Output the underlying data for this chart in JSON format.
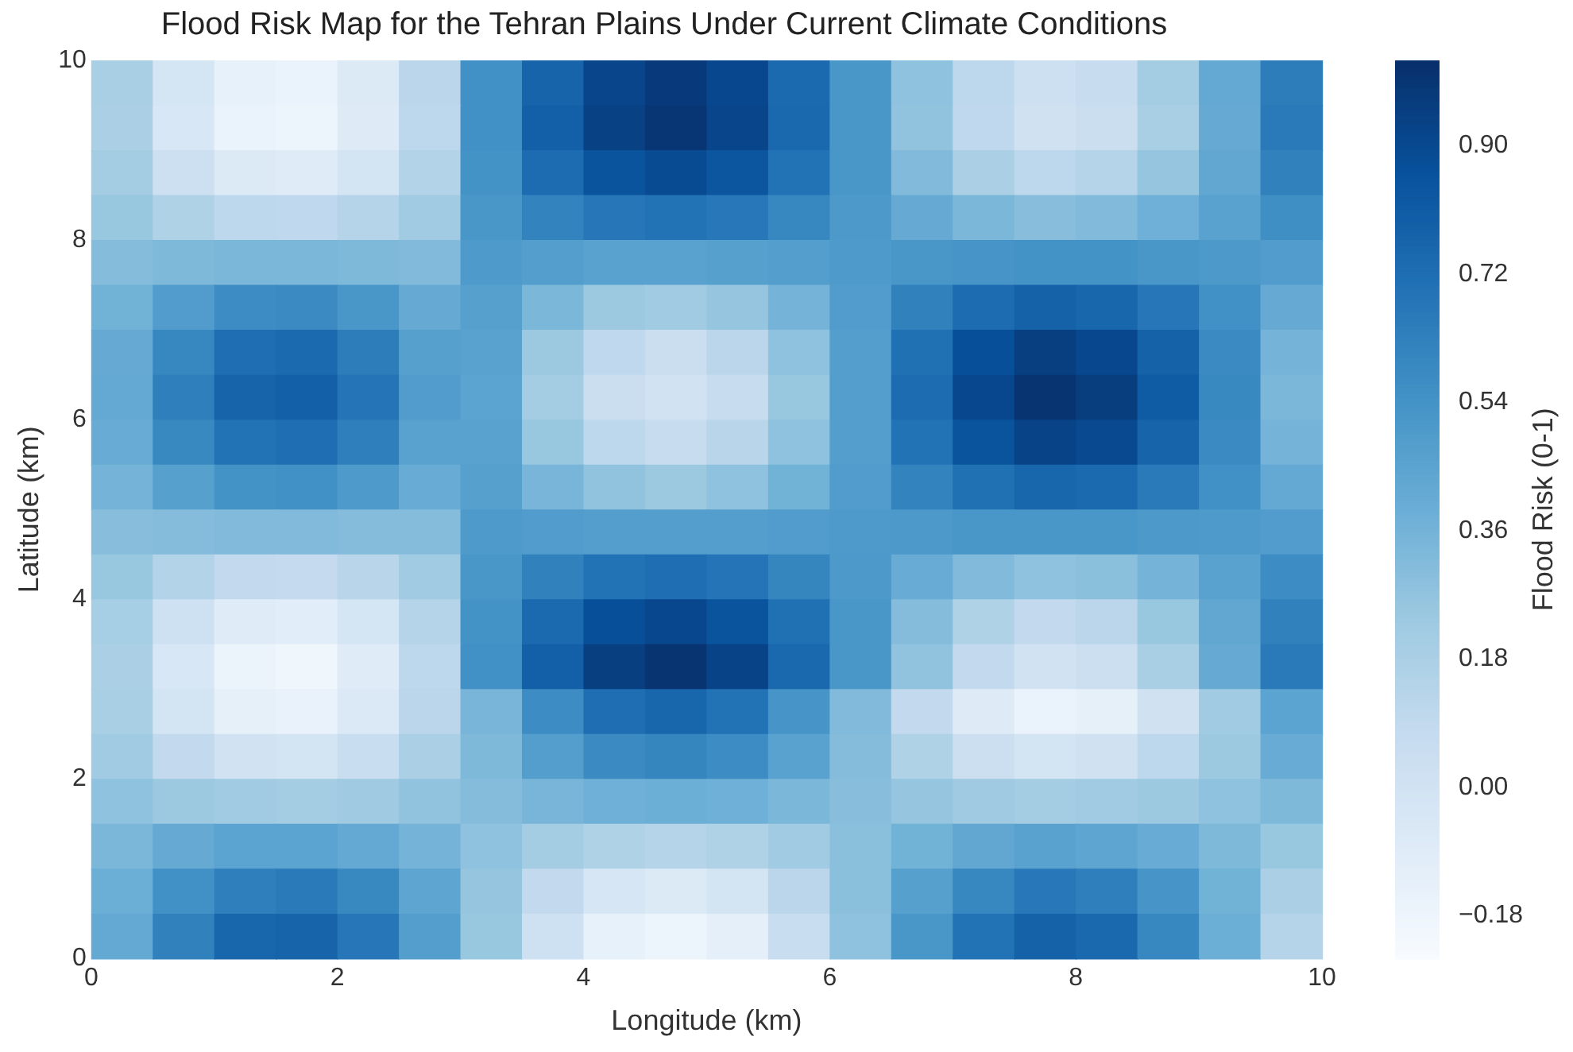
{
  "chart_data": {
    "type": "heatmap",
    "title": "Flood Risk Map for the Tehran Plains Under Current Climate Conditions",
    "xlabel": "Longitude (km)",
    "ylabel": "Latitude (km)",
    "clabel": "Flood Risk (0-1)",
    "x": [
      0.25,
      0.75,
      1.25,
      1.75,
      2.25,
      2.75,
      3.25,
      3.75,
      4.25,
      4.75,
      5.25,
      5.75,
      6.25,
      6.75,
      7.25,
      7.75,
      8.25,
      8.75,
      9.25,
      9.75
    ],
    "y": [
      9.75,
      9.25,
      8.75,
      8.25,
      7.75,
      7.25,
      6.75,
      6.25,
      5.75,
      5.25,
      4.75,
      4.25,
      3.75,
      3.25,
      2.75,
      2.25,
      1.75,
      1.25,
      0.75,
      0.25
    ],
    "xlim": [
      0,
      10
    ],
    "ylim": [
      0,
      10
    ],
    "xticks": [
      0,
      2,
      4,
      6,
      8,
      10
    ],
    "yticks": [
      0,
      2,
      4,
      6,
      8,
      10
    ],
    "clim": [
      -0.24,
      1.02
    ],
    "cticks": [
      {
        "value": -0.18,
        "label": "−0.18"
      },
      {
        "value": 0,
        "label": "0.00"
      },
      0.18,
      0.36,
      0.54,
      0.72,
      {
        "value": 0.9,
        "label": "0.90"
      }
    ],
    "colors": [
      "#f7fbff",
      "#deebf7",
      "#c6dbef",
      "#9ecae1",
      "#6baed6",
      "#4292c6",
      "#2171b5",
      "#08519c",
      "#08306b"
    ],
    "cells": [
      [
        0.19,
        -0.02,
        -0.14,
        -0.16,
        -0.07,
        0.12,
        0.55,
        0.77,
        0.92,
        0.97,
        0.91,
        0.74,
        0.52,
        0.28,
        0.11,
        0.03,
        0.07,
        0.21,
        0.42,
        0.65
      ],
      [
        0.18,
        -0.04,
        -0.16,
        -0.18,
        -0.08,
        0.11,
        0.55,
        0.79,
        0.94,
        0.99,
        0.92,
        0.75,
        0.52,
        0.27,
        0.1,
        0.01,
        0.05,
        0.19,
        0.41,
        0.66
      ],
      [
        0.21,
        0.03,
        -0.07,
        -0.09,
        -0.01,
        0.15,
        0.54,
        0.73,
        0.85,
        0.89,
        0.84,
        0.7,
        0.52,
        0.32,
        0.18,
        0.11,
        0.14,
        0.26,
        0.43,
        0.63
      ],
      [
        0.25,
        0.16,
        0.11,
        0.1,
        0.14,
        0.22,
        0.52,
        0.62,
        0.68,
        0.7,
        0.67,
        0.6,
        0.51,
        0.41,
        0.34,
        0.3,
        0.32,
        0.38,
        0.46,
        0.56
      ],
      [
        0.31,
        0.33,
        0.34,
        0.34,
        0.33,
        0.32,
        0.5,
        0.48,
        0.46,
        0.46,
        0.47,
        0.48,
        0.5,
        0.52,
        0.53,
        0.54,
        0.54,
        0.52,
        0.51,
        0.49
      ],
      [
        0.37,
        0.49,
        0.57,
        0.58,
        0.52,
        0.41,
        0.47,
        0.34,
        0.24,
        0.22,
        0.26,
        0.36,
        0.49,
        0.63,
        0.73,
        0.78,
        0.76,
        0.68,
        0.55,
        0.41
      ],
      [
        0.41,
        0.6,
        0.72,
        0.74,
        0.65,
        0.47,
        0.46,
        0.24,
        0.1,
        0.05,
        0.12,
        0.28,
        0.48,
        0.71,
        0.87,
        0.95,
        0.91,
        0.78,
        0.58,
        0.36
      ],
      [
        0.42,
        0.64,
        0.77,
        0.79,
        0.69,
        0.49,
        0.45,
        0.21,
        0.05,
        0.0,
        0.07,
        0.25,
        0.48,
        0.73,
        0.91,
        1.0,
        0.96,
        0.81,
        0.59,
        0.34
      ],
      [
        0.4,
        0.59,
        0.7,
        0.72,
        0.64,
        0.46,
        0.46,
        0.25,
        0.11,
        0.07,
        0.13,
        0.28,
        0.48,
        0.7,
        0.85,
        0.93,
        0.9,
        0.77,
        0.58,
        0.36
      ],
      [
        0.36,
        0.47,
        0.54,
        0.55,
        0.5,
        0.4,
        0.47,
        0.35,
        0.27,
        0.24,
        0.28,
        0.37,
        0.49,
        0.62,
        0.71,
        0.76,
        0.74,
        0.66,
        0.55,
        0.42
      ],
      [
        0.3,
        0.31,
        0.32,
        0.32,
        0.31,
        0.31,
        0.5,
        0.49,
        0.48,
        0.48,
        0.48,
        0.49,
        0.5,
        0.51,
        0.52,
        0.52,
        0.52,
        0.51,
        0.5,
        0.49
      ],
      [
        0.25,
        0.15,
        0.09,
        0.08,
        0.13,
        0.22,
        0.52,
        0.63,
        0.7,
        0.72,
        0.69,
        0.61,
        0.51,
        0.4,
        0.32,
        0.28,
        0.29,
        0.36,
        0.46,
        0.57
      ],
      [
        0.2,
        0.02,
        -0.09,
        -0.1,
        -0.02,
        0.14,
        0.54,
        0.74,
        0.87,
        0.91,
        0.85,
        0.71,
        0.52,
        0.31,
        0.16,
        0.09,
        0.12,
        0.25,
        0.43,
        0.63
      ],
      [
        0.18,
        -0.04,
        -0.17,
        -0.19,
        -0.09,
        0.11,
        0.55,
        0.79,
        0.95,
        1.0,
        0.93,
        0.75,
        0.52,
        0.27,
        0.09,
        0.0,
        0.04,
        0.19,
        0.41,
        0.66
      ],
      [
        0.19,
        -0.01,
        -0.13,
        -0.15,
        -0.06,
        0.12,
        0.35,
        0.57,
        0.72,
        0.76,
        0.7,
        0.53,
        0.32,
        0.09,
        -0.08,
        -0.16,
        -0.13,
        0.01,
        0.22,
        0.45
      ],
      [
        0.22,
        0.09,
        0.0,
        -0.01,
        0.06,
        0.18,
        0.33,
        0.48,
        0.58,
        0.61,
        0.57,
        0.46,
        0.31,
        0.16,
        0.04,
        -0.01,
        0.01,
        0.11,
        0.24,
        0.4
      ],
      [
        0.28,
        0.24,
        0.22,
        0.21,
        0.23,
        0.27,
        0.31,
        0.35,
        0.38,
        0.39,
        0.38,
        0.34,
        0.3,
        0.26,
        0.23,
        0.21,
        0.22,
        0.24,
        0.28,
        0.33
      ],
      [
        0.34,
        0.41,
        0.45,
        0.45,
        0.42,
        0.36,
        0.28,
        0.21,
        0.16,
        0.14,
        0.16,
        0.22,
        0.29,
        0.37,
        0.43,
        0.46,
        0.44,
        0.4,
        0.33,
        0.25
      ],
      [
        0.39,
        0.55,
        0.64,
        0.66,
        0.59,
        0.44,
        0.26,
        0.09,
        -0.03,
        -0.07,
        -0.01,
        0.12,
        0.29,
        0.47,
        0.6,
        0.67,
        0.64,
        0.53,
        0.37,
        0.18
      ],
      [
        0.42,
        0.63,
        0.76,
        0.77,
        0.68,
        0.48,
        0.25,
        0.02,
        -0.14,
        -0.18,
        -0.12,
        0.06,
        0.28,
        0.52,
        0.7,
        0.78,
        0.75,
        0.6,
        0.39,
        0.14
      ]
    ]
  }
}
